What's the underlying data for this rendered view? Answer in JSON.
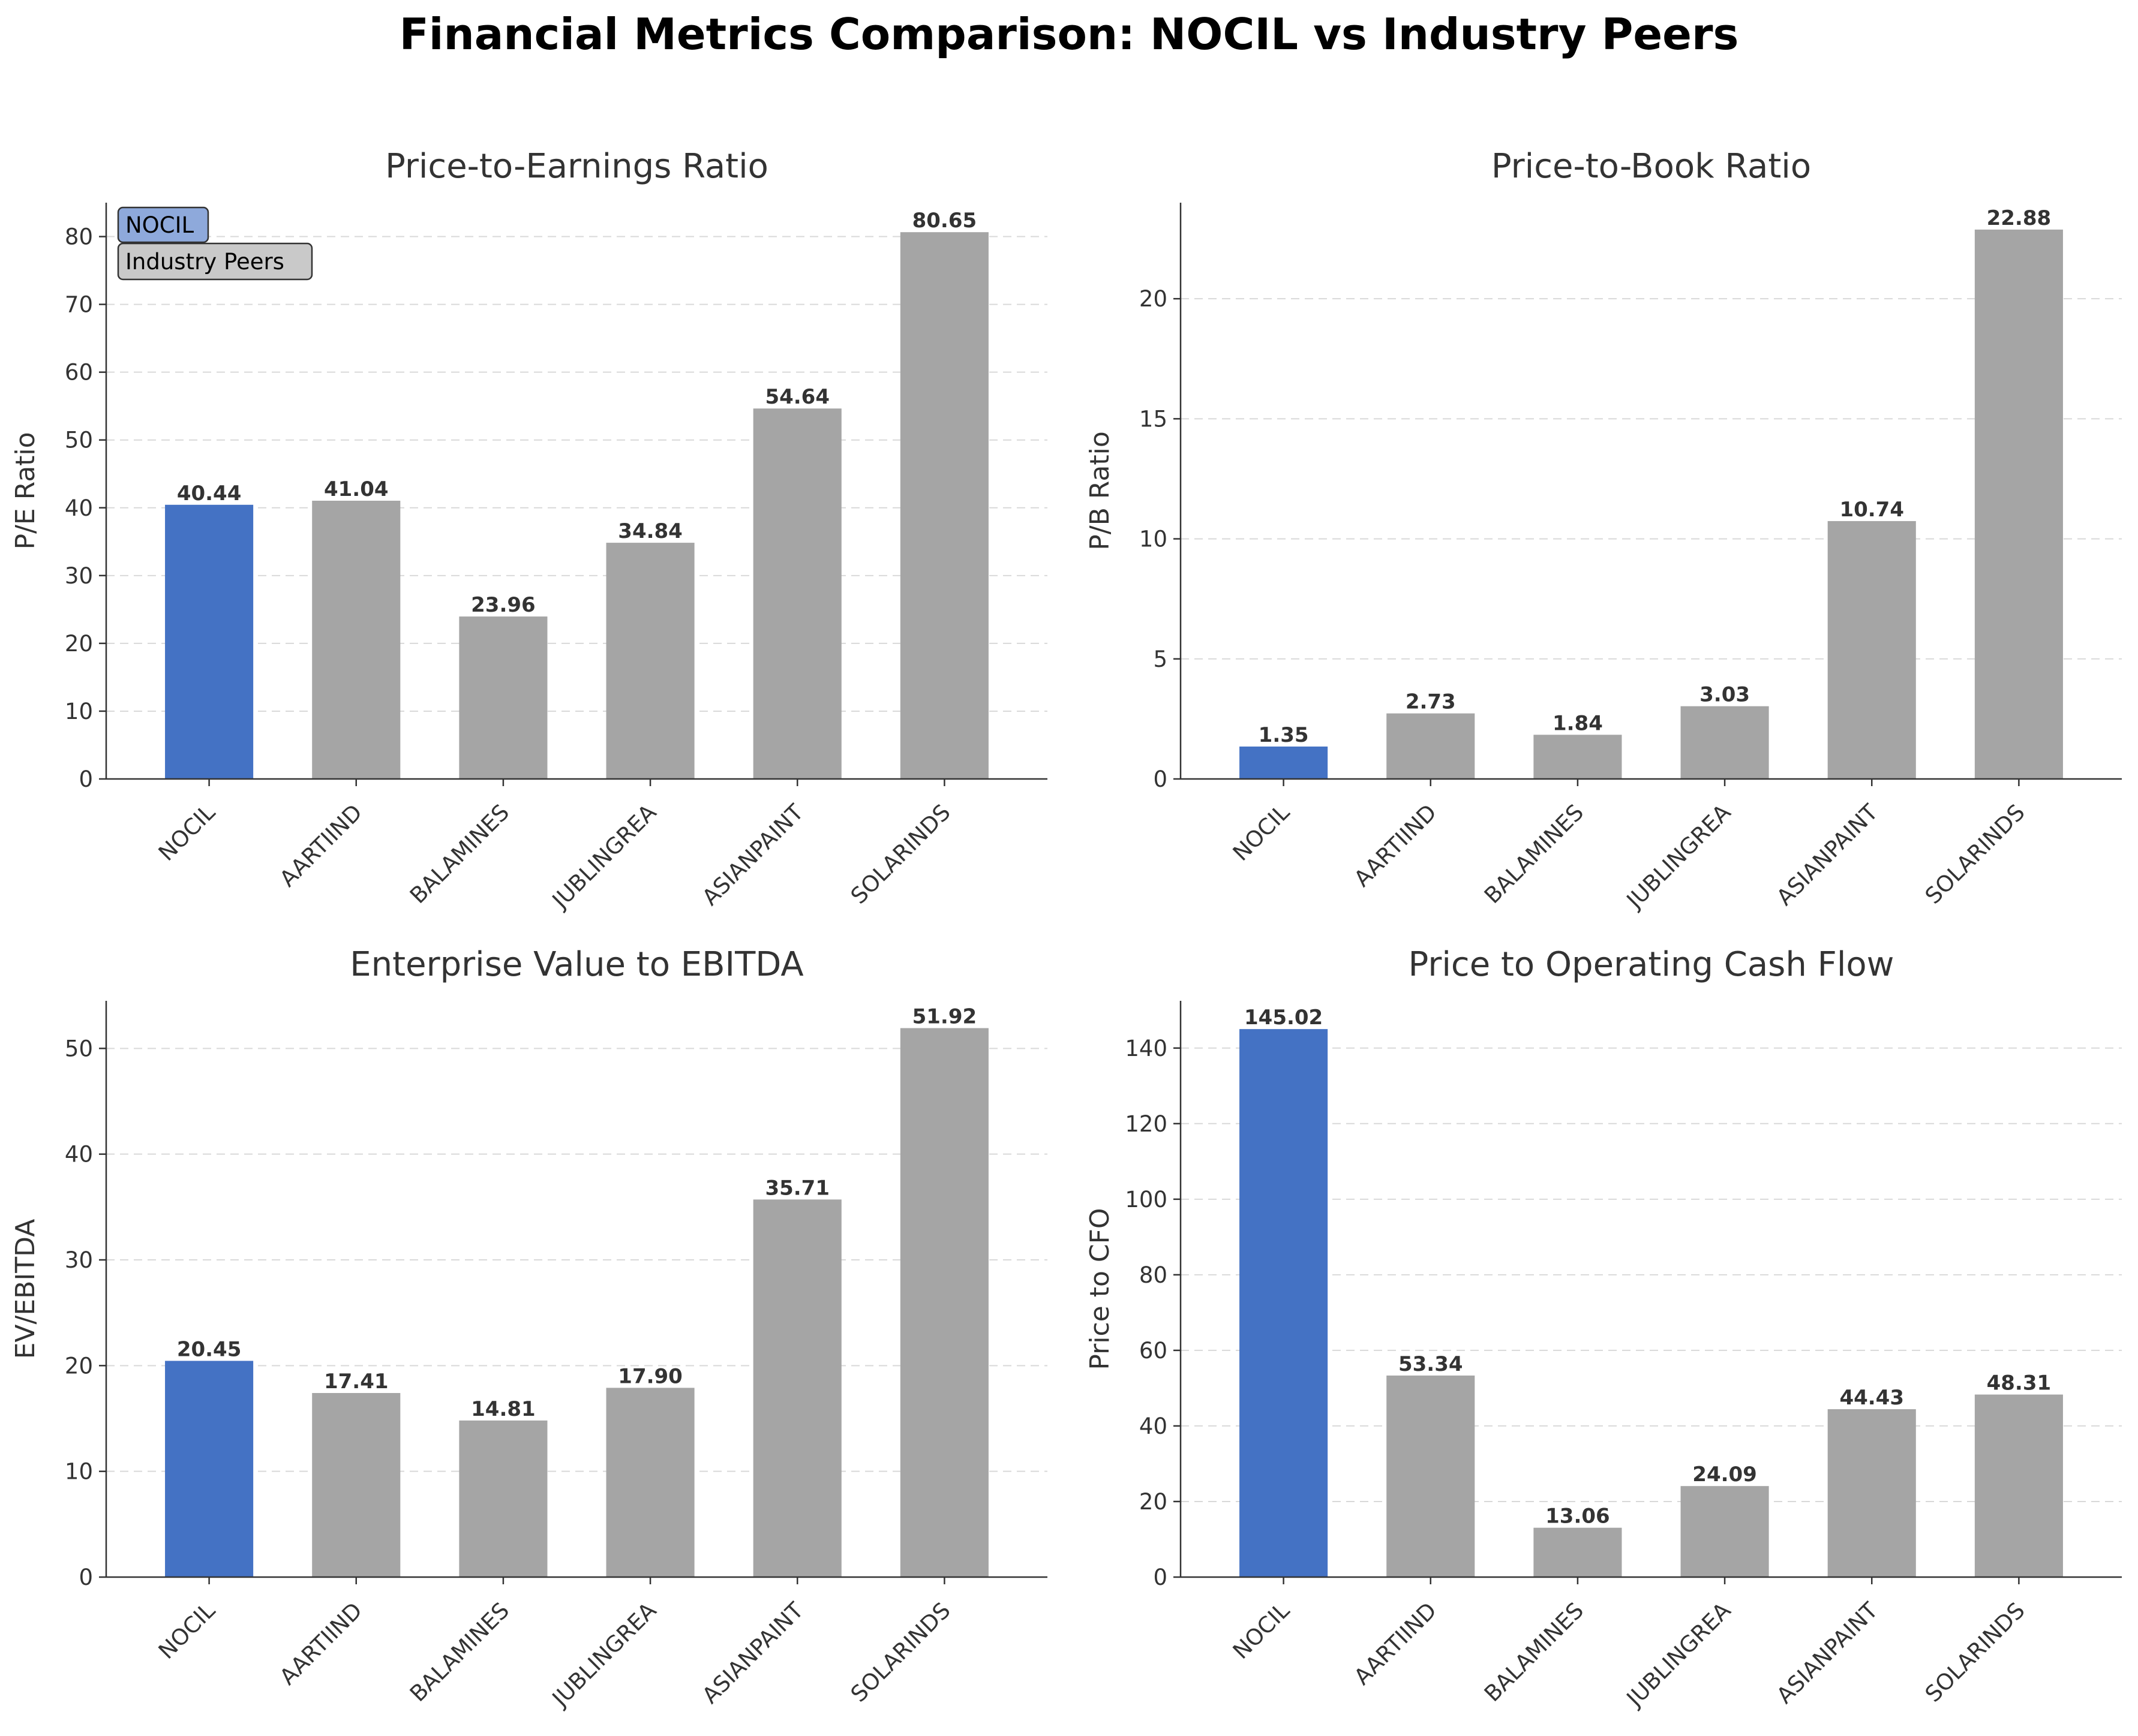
{
  "figure": {
    "title": "Financial Metrics Comparison: NOCIL vs Industry Peers"
  },
  "colors": {
    "highlight": "#4472C4",
    "peer": "#A5A5A5",
    "legend_highlight_bg": "#8EA9DB",
    "legend_peer_bg": "#C9C9C9",
    "grid": "#D9D9D9",
    "axis": "#333333",
    "text": "#333333"
  },
  "legend": {
    "highlight_label": "NOCIL",
    "peer_label": "Industry Peers",
    "placement": "top-left"
  },
  "chart_data": [
    {
      "type": "bar",
      "title": "Price-to-Earnings Ratio",
      "xlabel": "",
      "ylabel": "P/E Ratio",
      "categories": [
        "NOCIL",
        "AARTIIND",
        "BALAMINES",
        "JUBLINGREA",
        "ASIANPAINT",
        "SOLARINDS"
      ],
      "values": [
        40.44,
        41.04,
        23.96,
        34.84,
        54.64,
        80.65
      ],
      "value_labels": [
        "40.44",
        "41.04",
        "23.96",
        "34.84",
        "54.64",
        "80.65"
      ],
      "highlight": "NOCIL",
      "ylim": [
        0,
        85
      ],
      "yticks": [
        0,
        10,
        20,
        30,
        40,
        50,
        60,
        70,
        80
      ],
      "grid": "y-dashed",
      "legend": true
    },
    {
      "type": "bar",
      "title": "Price-to-Book Ratio",
      "xlabel": "",
      "ylabel": "P/B Ratio",
      "categories": [
        "NOCIL",
        "AARTIIND",
        "BALAMINES",
        "JUBLINGREA",
        "ASIANPAINT",
        "SOLARINDS"
      ],
      "values": [
        1.35,
        2.73,
        1.84,
        3.03,
        10.74,
        22.88
      ],
      "value_labels": [
        "1.35",
        "2.73",
        "1.84",
        "3.03",
        "10.74",
        "22.88"
      ],
      "highlight": "NOCIL",
      "ylim": [
        0,
        24
      ],
      "yticks": [
        0,
        5,
        10,
        15,
        20
      ],
      "grid": "y-dashed",
      "legend": false
    },
    {
      "type": "bar",
      "title": "Enterprise Value to EBITDA",
      "xlabel": "",
      "ylabel": "EV/EBITDA",
      "categories": [
        "NOCIL",
        "AARTIIND",
        "BALAMINES",
        "JUBLINGREA",
        "ASIANPAINT",
        "SOLARINDS"
      ],
      "values": [
        20.45,
        17.41,
        14.81,
        17.9,
        35.71,
        51.92
      ],
      "value_labels": [
        "20.45",
        "17.41",
        "14.81",
        "17.90",
        "35.71",
        "51.92"
      ],
      "highlight": "NOCIL",
      "ylim": [
        0,
        54.5
      ],
      "yticks": [
        0,
        10,
        20,
        30,
        40,
        50
      ],
      "grid": "y-dashed",
      "legend": false
    },
    {
      "type": "bar",
      "title": "Price to Operating Cash Flow",
      "xlabel": "",
      "ylabel": "Price to CFO",
      "categories": [
        "NOCIL",
        "AARTIIND",
        "BALAMINES",
        "JUBLINGREA",
        "ASIANPAINT",
        "SOLARINDS"
      ],
      "values": [
        145.02,
        53.34,
        13.06,
        24.09,
        44.43,
        48.31
      ],
      "value_labels": [
        "145.02",
        "53.34",
        "13.06",
        "24.09",
        "44.43",
        "48.31"
      ],
      "highlight": "NOCIL",
      "ylim": [
        0,
        152.5
      ],
      "yticks": [
        0,
        20,
        40,
        60,
        80,
        100,
        120,
        140
      ],
      "grid": "y-dashed",
      "legend": false
    }
  ]
}
